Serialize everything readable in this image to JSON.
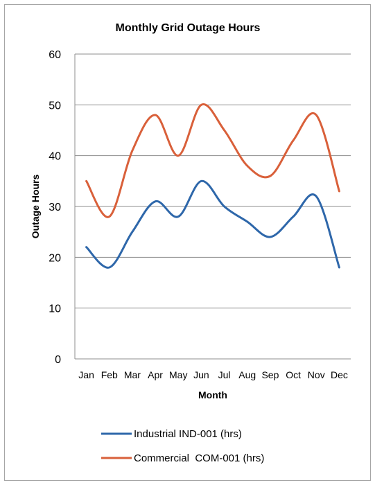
{
  "chart_data": {
    "type": "line",
    "title": "Monthly Grid Outage Hours",
    "xlabel": "Month",
    "ylabel": "Outage Hours",
    "ylim": [
      0,
      60
    ],
    "yticks": [
      0,
      10,
      20,
      30,
      40,
      50,
      60
    ],
    "grid": true,
    "legend_position": "bottom",
    "categories": [
      "Jan",
      "Feb",
      "Mar",
      "Apr",
      "May",
      "Jun",
      "Jul",
      "Aug",
      "Sep",
      "Oct",
      "Nov",
      "Dec"
    ],
    "series": [
      {
        "name": "Industrial IND-001 (hrs)",
        "color": "#2e67aa",
        "values": [
          22,
          18,
          25,
          31,
          28,
          35,
          30,
          27,
          24,
          28,
          32,
          18
        ]
      },
      {
        "name": "Commercial  COM-001 (hrs)",
        "color": "#d9603a",
        "values": [
          35,
          28,
          41,
          48,
          40,
          50,
          45,
          38,
          36,
          43,
          48,
          33
        ]
      }
    ]
  }
}
